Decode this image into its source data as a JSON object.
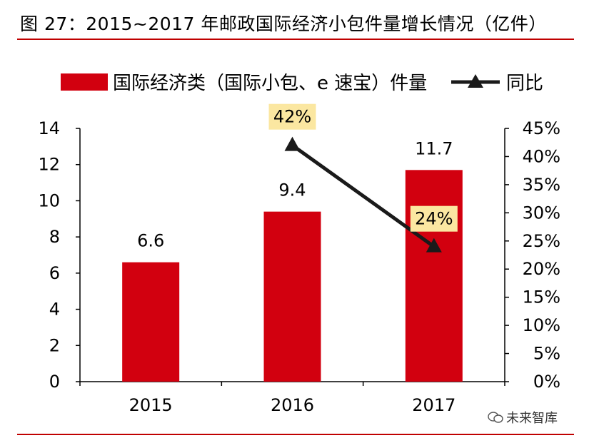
{
  "figure": {
    "title": "图 27：2015~2017 年邮政国际经济小包件量增长情况（亿件）",
    "watermark": "未来智库"
  },
  "colors": {
    "bar": "#d2000f",
    "line": "#1a1a1a",
    "accent_rule": "#c00000",
    "label_box": "#fbe7a1"
  },
  "chart_data": {
    "type": "bar",
    "categories": [
      "2015",
      "2016",
      "2017"
    ],
    "series": [
      {
        "name": "国际经济类（国际小包、e 速宝）件量",
        "type": "bar",
        "axis": "left",
        "values": [
          6.6,
          9.4,
          11.7
        ],
        "labels": [
          "6.6",
          "9.4",
          "11.7"
        ]
      },
      {
        "name": "同比",
        "type": "line",
        "axis": "right",
        "marker": "triangle",
        "x": [
          "2016",
          "2017"
        ],
        "values": [
          42,
          24
        ],
        "labels": [
          "42%",
          "24%"
        ]
      }
    ],
    "left_axis": {
      "ylim": [
        0,
        14
      ],
      "ticks": [
        "0",
        "2",
        "4",
        "6",
        "8",
        "10",
        "12",
        "14"
      ]
    },
    "right_axis": {
      "ylim": [
        0,
        45
      ],
      "ticks": [
        "0%",
        "5%",
        "10%",
        "15%",
        "20%",
        "25%",
        "30%",
        "35%",
        "40%",
        "45%"
      ]
    },
    "legend": {
      "placement": "top-center",
      "bar_label": "国际经济类（国际小包、e 速宝）件量",
      "line_label": "同比"
    },
    "grid": false
  }
}
